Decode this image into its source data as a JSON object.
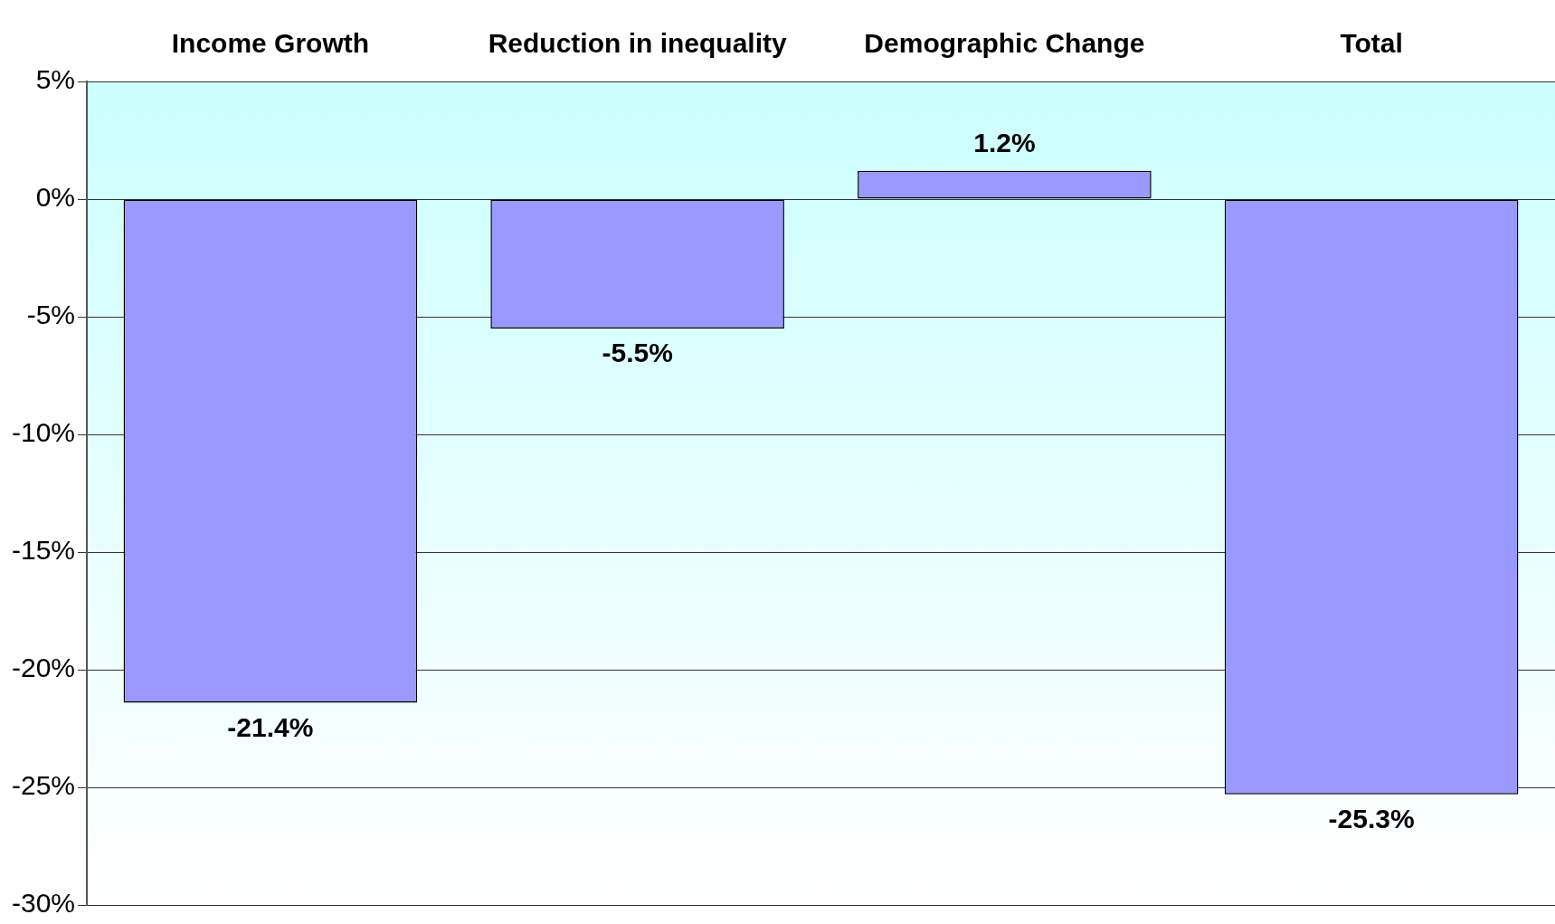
{
  "chart_data": {
    "type": "bar",
    "categories": [
      "Income Growth",
      "Reduction in inequality",
      "Demographic Change",
      "Total"
    ],
    "values": [
      -21.4,
      -5.5,
      1.2,
      -25.3
    ],
    "value_labels": [
      "-21.4%",
      "-5.5%",
      "1.2%",
      "-25.3%"
    ],
    "color": "#9999ff",
    "ylim": [
      -30,
      5
    ],
    "yticks": [
      {
        "value": 5,
        "label": "5%"
      },
      {
        "value": 0,
        "label": "0%"
      },
      {
        "value": -5,
        "label": "-5%"
      },
      {
        "value": -10,
        "label": "-10%"
      },
      {
        "value": -15,
        "label": "-15%"
      },
      {
        "value": -20,
        "label": "-20%"
      },
      {
        "value": -25,
        "label": "-25%"
      },
      {
        "value": -30,
        "label": "-30%"
      }
    ],
    "grid": "y"
  }
}
